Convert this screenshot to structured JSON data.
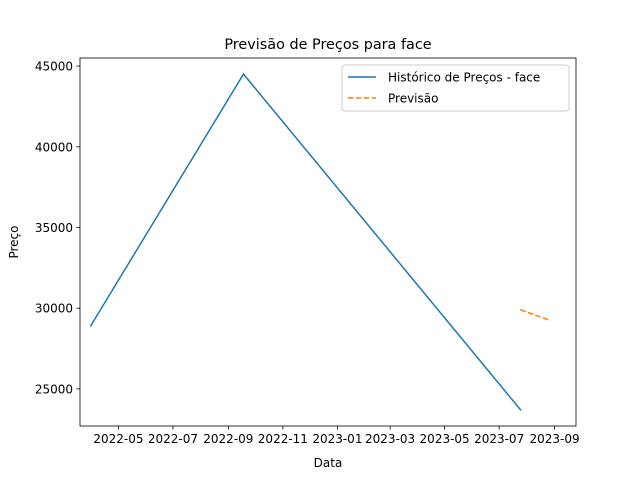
{
  "chart_data": {
    "type": "line",
    "title": "Previsão de Preços para face",
    "xlabel": "Data",
    "ylabel": "Preço",
    "x_axis_type": "date",
    "xlim": [
      "2022-03-19",
      "2023-09-25"
    ],
    "ylim": [
      22700,
      45500
    ],
    "x_ticks": [
      "2022-05-01",
      "2022-07-01",
      "2022-09-01",
      "2022-11-01",
      "2023-01-01",
      "2023-03-01",
      "2023-05-01",
      "2023-07-01",
      "2023-09-01"
    ],
    "x_tick_labels": [
      "2022-05",
      "2022-07",
      "2022-09",
      "2022-11",
      "2023-01",
      "2023-03",
      "2023-05",
      "2023-07",
      "2023-09"
    ],
    "y_ticks": [
      25000,
      30000,
      35000,
      40000,
      45000
    ],
    "y_tick_labels": [
      "25000",
      "30000",
      "35000",
      "40000",
      "45000"
    ],
    "grid": false,
    "legend_position": "top-right",
    "series": [
      {
        "name": "Histórico de Preços - face",
        "color": "#1f77b4",
        "style": "solid",
        "points": [
          {
            "x": "2022-03-31",
            "y": 28900
          },
          {
            "x": "2022-09-18",
            "y": 44500
          },
          {
            "x": "2023-07-25",
            "y": 23700
          }
        ]
      },
      {
        "name": "Previsão",
        "color": "#ff7f0e",
        "style": "dashed",
        "points": [
          {
            "x": "2023-07-25",
            "y": 29900
          },
          {
            "x": "2023-08-24",
            "y": 29300
          }
        ]
      }
    ]
  }
}
